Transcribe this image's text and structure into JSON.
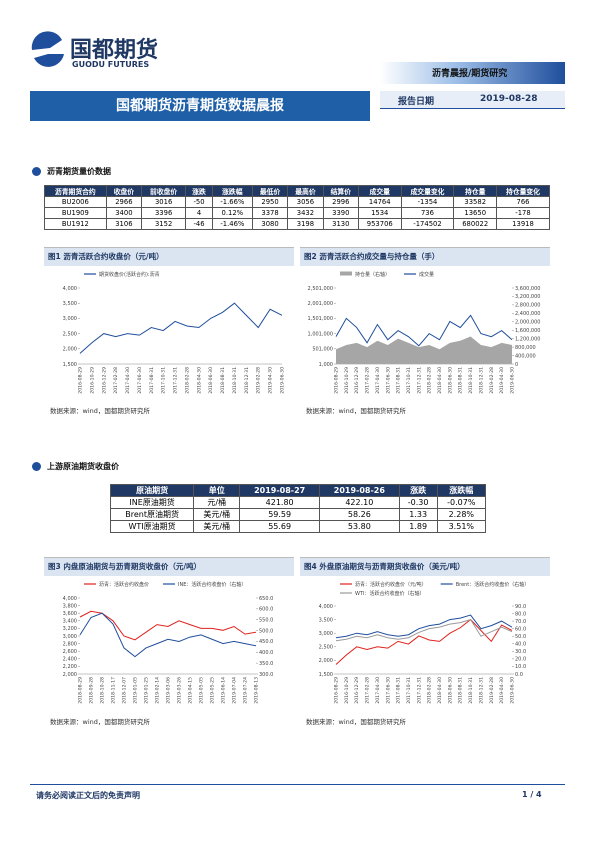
{
  "header": {
    "logo_cn": "国都期货",
    "logo_en": "GUODU FUTURES",
    "category": "沥青晨报/期货研究",
    "title": "国都期货沥青期货数据晨报",
    "date_label": "报告日期",
    "date": "2019-08-28"
  },
  "sections": [
    {
      "title": "沥青期货量价数据",
      "table": {
        "columns": [
          "沥青期货合约",
          "收盘价",
          "前收盘价",
          "涨跌",
          "涨跌幅",
          "最低价",
          "最高价",
          "结算价",
          "成交量",
          "成交量变化",
          "持仓量",
          "持仓量变化"
        ],
        "rows": [
          [
            "BU2006",
            "2966",
            "3016",
            "-50",
            "-1.66%",
            "2950",
            "3056",
            "2996",
            "14764",
            "-1354",
            "33582",
            "766"
          ],
          [
            "BU1909",
            "3400",
            "3396",
            "4",
            "0.12%",
            "3378",
            "3432",
            "3390",
            "1534",
            "736",
            "13650",
            "-178"
          ],
          [
            "BU1912",
            "3106",
            "3152",
            "-46",
            "-1.46%",
            "3080",
            "3198",
            "3130",
            "953706",
            "-174502",
            "680022",
            "13918"
          ]
        ]
      }
    },
    {
      "title": "上游原油期货收盘价",
      "table": {
        "columns": [
          "原油期货",
          "单位",
          "2019-08-27",
          "2019-08-26",
          "涨跌",
          "涨跌幅"
        ],
        "rows": [
          [
            "INE原油期货",
            "元/桶",
            "421.80",
            "422.10",
            "-0.30",
            "-0.07%"
          ],
          [
            "Brent原油期货",
            "美元/桶",
            "59.59",
            "58.26",
            "1.33",
            "2.28%"
          ],
          [
            "WTI原油期货",
            "美元/桶",
            "55.69",
            "53.80",
            "1.89",
            "3.51%"
          ]
        ]
      }
    }
  ],
  "chart_data": [
    {
      "type": "line",
      "title": "图1 沥青活跃合约收盘价（元/吨）",
      "note": "数据来源：wind，国都期货研究所",
      "categories": [
        "2016-08-29",
        "2016-10-29",
        "2016-12-29",
        "2017-02-28",
        "2017-04-30",
        "2017-06-30",
        "2017-08-31",
        "2017-10-31",
        "2017-12-31",
        "2018-02-28",
        "2018-04-30",
        "2018-06-30",
        "2018-08-31",
        "2018-10-31",
        "2018-12-31",
        "2019-02-28",
        "2019-04-30",
        "2019-06-30"
      ],
      "series": [
        {
          "name": "期货收盘价(活跃合约):沥青",
          "color": "#1f4e9c",
          "values": [
            1850,
            2200,
            2500,
            2400,
            2500,
            2450,
            2700,
            2600,
            2900,
            2750,
            2700,
            3000,
            3200,
            3500,
            3100,
            2700,
            3300,
            3100
          ]
        }
      ],
      "ylim": [
        1500,
        4000
      ],
      "yticks": [
        {
          "value": 1500,
          "label": "1,500"
        },
        {
          "value": 2000,
          "label": "2,000"
        },
        {
          "value": 2500,
          "label": "2,500"
        },
        {
          "value": 3000,
          "label": "3,000"
        },
        {
          "value": 3500,
          "label": "3,500"
        },
        {
          "value": 4000,
          "label": "4,000"
        }
      ]
    },
    {
      "type": "line",
      "title": "图2 沥青活跃合约成交量与持仓量（手）",
      "note": "数据来源：wind，国都期货研究所",
      "categories": [
        "2016-08-29",
        "2016-10-29",
        "2016-12-29",
        "2017-02-28",
        "2017-04-30",
        "2017-06-30",
        "2017-08-31",
        "2017-10-31",
        "2017-12-31",
        "2018-02-28",
        "2018-04-30",
        "2018-06-30",
        "2018-08-31",
        "2018-10-31",
        "2018-12-31",
        "2019-02-28",
        "2019-04-30",
        "2019-06-30"
      ],
      "series": [
        {
          "name": "持仓量（右轴）",
          "color": "#a6a6a6",
          "kind": "area",
          "axis": "y2",
          "values": [
            700000,
            900000,
            1000000,
            800000,
            1100000,
            900000,
            1200000,
            1000000,
            800000,
            900000,
            700000,
            1000000,
            1100000,
            1300000,
            900000,
            800000,
            1000000,
            900000
          ]
        },
        {
          "name": "成交量",
          "color": "#1f4e9c",
          "values": [
            900000,
            1500000,
            1200000,
            700000,
            1300000,
            800000,
            1100000,
            900000,
            600000,
            1000000,
            800000,
            1400000,
            1200000,
            1600000,
            1000000,
            900000,
            1100000,
            800000
          ]
        }
      ],
      "ylim": [
        1000,
        2501000
      ],
      "yticks": [
        {
          "value": 1000,
          "label": "1,000"
        },
        {
          "value": 501000,
          "label": "501,000"
        },
        {
          "value": 1001000,
          "label": "1,001,000"
        },
        {
          "value": 1501000,
          "label": "1,501,000"
        },
        {
          "value": 2001000,
          "label": "2,001,000"
        },
        {
          "value": 2501000,
          "label": "2,501,000"
        }
      ],
      "y2lim": [
        0,
        3600000
      ],
      "y2ticks": [
        0,
        {
          "value": 400000,
          "label": "400,000"
        },
        {
          "value": 800000,
          "label": "800,000"
        },
        {
          "value": 1200000,
          "label": "1,200,000"
        },
        {
          "value": 1600000,
          "label": "1,600,000"
        },
        {
          "value": 2000000,
          "label": "2,000,000"
        },
        {
          "value": 2400000,
          "label": "2,400,000"
        },
        {
          "value": 2800000,
          "label": "2,800,000"
        },
        {
          "value": 3200000,
          "label": "3,200,000"
        },
        {
          "value": 3600000,
          "label": "3,600,000"
        }
      ]
    },
    {
      "type": "line",
      "title": "图3 内盘原油期货与沥青期货收盘价（元/吨）",
      "note": "数据来源：wind，国都期货研究所",
      "categories": [
        "2018-08-29",
        "2018-09-28",
        "2018-10-28",
        "2018-11-17",
        "2018-12-07",
        "2019-01-05",
        "2019-01-25",
        "2019-02-14",
        "2019-03-06",
        "2019-03-26",
        "2019-04-15",
        "2019-05-05",
        "2019-05-25",
        "2019-06-14",
        "2019-07-04",
        "2019-07-24",
        "2019-08-13"
      ],
      "series": [
        {
          "name": "沥青：活跃合约收盘价",
          "color": "#e0211c",
          "values": [
            3500,
            3650,
            3600,
            3400,
            3000,
            2900,
            3100,
            3300,
            3250,
            3400,
            3300,
            3200,
            3200,
            3150,
            3250,
            3050,
            3100
          ]
        },
        {
          "name": "INE：活跃合约收盘价（右轴）",
          "color": "#1f4e9c",
          "axis": "y2",
          "values": [
            480,
            560,
            580,
            530,
            420,
            380,
            420,
            440,
            460,
            450,
            470,
            480,
            460,
            440,
            450,
            440,
            430
          ]
        }
      ],
      "ylim": [
        2000,
        4000
      ],
      "yticks": [
        {
          "value": 2000,
          "label": "2,000"
        },
        {
          "value": 2200,
          "label": "2,200"
        },
        {
          "value": 2400,
          "label": "2,400"
        },
        {
          "value": 2600,
          "label": "2,600"
        },
        {
          "value": 2800,
          "label": "2,800"
        },
        {
          "value": 3000,
          "label": "3,000"
        },
        {
          "value": 3200,
          "label": "3,200"
        },
        {
          "value": 3400,
          "label": "3,400"
        },
        {
          "value": 3600,
          "label": "3,600"
        },
        {
          "value": 3800,
          "label": "3,800"
        },
        {
          "value": 4000,
          "label": "4,000"
        }
      ],
      "y2lim": [
        300,
        650
      ],
      "y2ticks": [
        {
          "value": 300,
          "label": "300.0"
        },
        {
          "value": 350,
          "label": "350.0"
        },
        {
          "value": 400,
          "label": "400.0"
        },
        {
          "value": 450,
          "label": "450.0"
        },
        {
          "value": 500,
          "label": "500.0"
        },
        {
          "value": 550,
          "label": "550.0"
        },
        {
          "value": 600,
          "label": "600.0"
        },
        {
          "value": 650,
          "label": "650.0"
        }
      ]
    },
    {
      "type": "line",
      "title": "图4 外盘原油期货与沥青期货收盘价（美元/吨）",
      "note": "数据来源：wind，国都期货研究所",
      "categories": [
        "2016-08-29",
        "2016-10-29",
        "2016-12-29",
        "2017-02-28",
        "2017-04-30",
        "2017-06-30",
        "2017-08-31",
        "2017-10-31",
        "2017-12-31",
        "2018-02-28",
        "2018-04-30",
        "2018-06-30",
        "2018-08-31",
        "2018-10-31",
        "2018-12-31",
        "2019-02-28",
        "2019-04-30",
        "2019-06-30"
      ],
      "series": [
        {
          "name": "沥青：活跃合约收盘价（元/吨）",
          "color": "#e0211c",
          "values": [
            1850,
            2200,
            2500,
            2400,
            2500,
            2450,
            2700,
            2600,
            2900,
            2750,
            2700,
            3000,
            3200,
            3500,
            3100,
            2700,
            3300,
            3100
          ]
        },
        {
          "name": "Brent：活跃合约收盘价（右轴）",
          "color": "#1f4e9c",
          "axis": "y2",
          "values": [
            48,
            50,
            54,
            52,
            56,
            52,
            50,
            52,
            60,
            64,
            66,
            72,
            74,
            78,
            60,
            64,
            70,
            62
          ]
        },
        {
          "name": "WTI：活跃合约收盘价（右轴）",
          "color": "#9a9a9a",
          "axis": "y2",
          "values": [
            44,
            46,
            50,
            48,
            52,
            48,
            46,
            48,
            55,
            60,
            62,
            66,
            68,
            72,
            50,
            56,
            62,
            56
          ]
        }
      ],
      "ylim": [
        1500,
        4000
      ],
      "yticks": [
        {
          "value": 1500,
          "label": "1,500"
        },
        {
          "value": 2000,
          "label": "2,000"
        },
        {
          "value": 2500,
          "label": "2,500"
        },
        {
          "value": 3000,
          "label": "3,000"
        },
        {
          "value": 3500,
          "label": "3,500"
        },
        {
          "value": 4000,
          "label": "4,000"
        }
      ],
      "y2lim": [
        0,
        90
      ],
      "y2ticks": [
        {
          "value": 0,
          "label": "0.0"
        },
        {
          "value": 10,
          "label": "10.0"
        },
        {
          "value": 20,
          "label": "20.0"
        },
        {
          "value": 30,
          "label": "30.0"
        },
        {
          "value": 40,
          "label": "40.0"
        },
        {
          "value": 50,
          "label": "50.0"
        },
        {
          "value": 60,
          "label": "60.0"
        },
        {
          "value": 70,
          "label": "70.0"
        },
        {
          "value": 80,
          "label": "80.0"
        },
        {
          "value": 90,
          "label": "90.0"
        }
      ]
    }
  ],
  "footer": {
    "disclaimer": "请务必阅读正文后的免责声明",
    "page": "1 / 4"
  }
}
